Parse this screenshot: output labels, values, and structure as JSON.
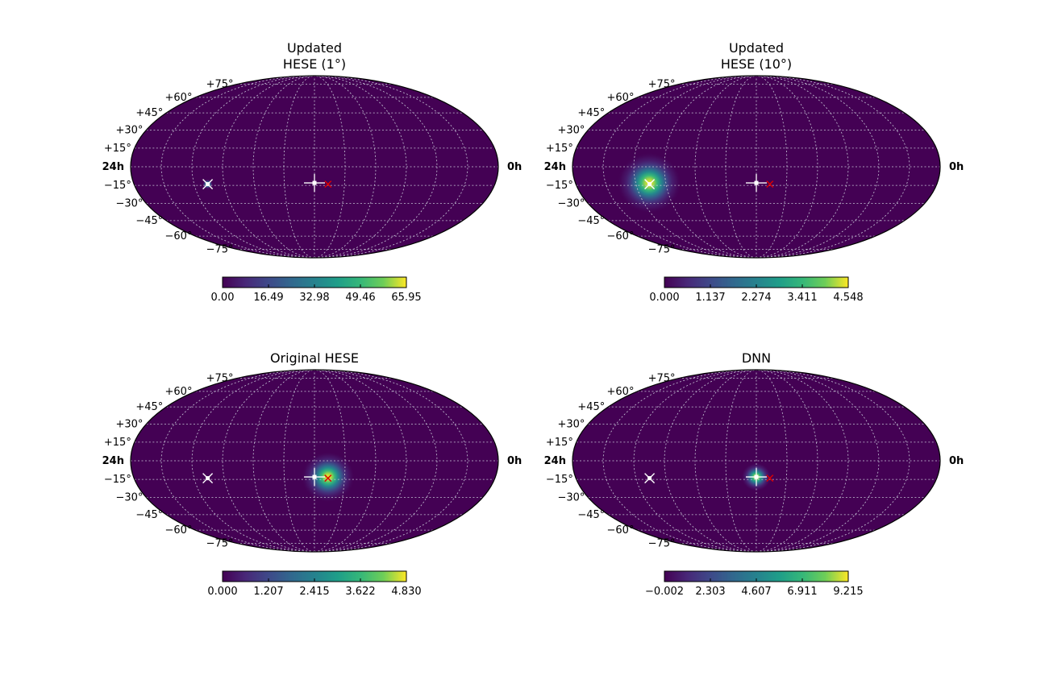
{
  "chart_data": [
    {
      "type": "heatmap",
      "projection": "mollweide",
      "title_lines": [
        "Updated",
        "HESE (1°)"
      ],
      "dec_labels": [
        "+75°",
        "+60°",
        "+45°",
        "+30°",
        "+15°",
        "−15°",
        "−30°",
        "−45°",
        "−60°",
        "−75°"
      ],
      "ra_labels": {
        "left": "24h",
        "right": "0h"
      },
      "grid": true,
      "colormap": "viridis",
      "colorbar_ticks": [
        "0.00",
        "16.49",
        "32.98",
        "49.46",
        "65.95"
      ],
      "vmin": 0.0,
      "vmax": 65.95,
      "hotspots": [
        {
          "ra_h": 4.9,
          "dec": -14,
          "peak": 65.95,
          "sigma": 1
        }
      ],
      "markers": [
        {
          "symbol": "x",
          "color": "#dd0000",
          "ra_h": 12.9,
          "dec": -14
        },
        {
          "symbol": "plus",
          "color": "#ffffff",
          "ra_h": 12.0,
          "dec": -13
        },
        {
          "symbol": "x",
          "color": "#ffffff",
          "ra_h": 4.9,
          "dec": -14
        }
      ]
    },
    {
      "type": "heatmap",
      "projection": "mollweide",
      "title_lines": [
        "Updated",
        "HESE (10°)"
      ],
      "dec_labels": [
        "+75°",
        "+60°",
        "+45°",
        "+30°",
        "+15°",
        "−15°",
        "−30°",
        "−45°",
        "−60°",
        "−75°"
      ],
      "ra_labels": {
        "left": "24h",
        "right": "0h"
      },
      "grid": true,
      "colormap": "viridis",
      "colorbar_ticks": [
        "0.000",
        "1.137",
        "2.274",
        "3.411",
        "4.548"
      ],
      "vmin": 0.0,
      "vmax": 4.548,
      "hotspots": [
        {
          "ra_h": 4.9,
          "dec": -13,
          "peak": 4.548,
          "sigma": 6
        }
      ],
      "markers": [
        {
          "symbol": "x",
          "color": "#dd0000",
          "ra_h": 12.9,
          "dec": -14
        },
        {
          "symbol": "plus",
          "color": "#ffffff",
          "ra_h": 12.0,
          "dec": -13
        },
        {
          "symbol": "x",
          "color": "#ffffff",
          "ra_h": 4.9,
          "dec": -14
        }
      ]
    },
    {
      "type": "heatmap",
      "projection": "mollweide",
      "title_lines": [
        "Original HESE"
      ],
      "dec_labels": [
        "+75°",
        "+60°",
        "+45°",
        "+30°",
        "+15°",
        "−15°",
        "−30°",
        "−45°",
        "−60°",
        "−75°"
      ],
      "ra_labels": {
        "left": "24h",
        "right": "0h"
      },
      "grid": true,
      "colormap": "viridis",
      "colorbar_ticks": [
        "0.000",
        "1.207",
        "2.415",
        "3.622",
        "4.830"
      ],
      "vmin": 0.0,
      "vmax": 4.83,
      "hotspots": [
        {
          "ra_h": 12.9,
          "dec": -13,
          "peak": 4.83,
          "sigma": 5
        }
      ],
      "markers": [
        {
          "symbol": "x",
          "color": "#dd0000",
          "ra_h": 12.9,
          "dec": -14
        },
        {
          "symbol": "plus",
          "color": "#ffffff",
          "ra_h": 12.0,
          "dec": -13
        },
        {
          "symbol": "x",
          "color": "#ffffff",
          "ra_h": 4.9,
          "dec": -14
        }
      ]
    },
    {
      "type": "heatmap",
      "projection": "mollweide",
      "title_lines": [
        "DNN"
      ],
      "dec_labels": [
        "+75°",
        "+60°",
        "+45°",
        "+30°",
        "+15°",
        "−15°",
        "−30°",
        "−45°",
        "−60°",
        "−75°"
      ],
      "ra_labels": {
        "left": "24h",
        "right": "0h"
      },
      "grid": true,
      "colormap": "viridis",
      "colorbar_ticks": [
        "−0.002",
        "2.303",
        "4.607",
        "6.911",
        "9.215"
      ],
      "vmin": -0.002,
      "vmax": 9.215,
      "hotspots": [
        {
          "ra_h": 12.0,
          "dec": -13,
          "peak": 9.215,
          "sigma": 2.8
        }
      ],
      "markers": [
        {
          "symbol": "x",
          "color": "#dd0000",
          "ra_h": 12.9,
          "dec": -14
        },
        {
          "symbol": "plus",
          "color": "#ffffff",
          "ra_h": 12.0,
          "dec": -13
        },
        {
          "symbol": "x",
          "color": "#ffffff",
          "ra_h": 4.9,
          "dec": -14
        }
      ]
    }
  ]
}
